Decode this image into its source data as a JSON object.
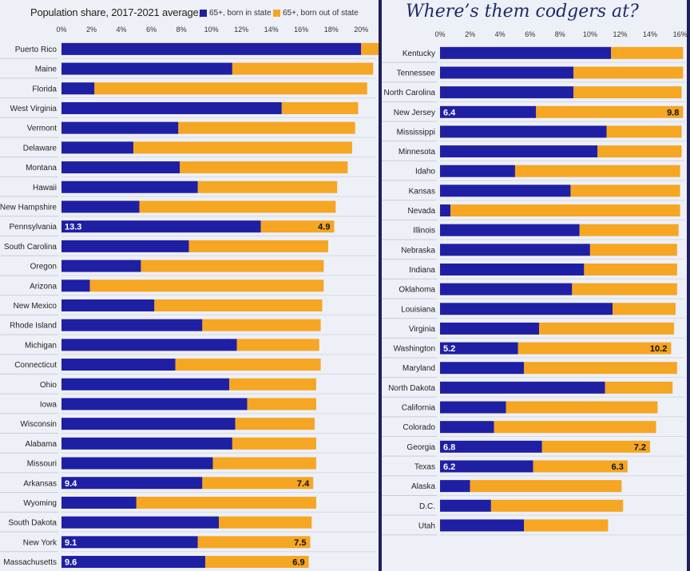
{
  "left_header": {
    "title": "Population share, 2017-2021 average,",
    "legend": [
      {
        "label": "65+, born in state",
        "color": "#1f1fa4"
      },
      {
        "label": "65+, born out of state",
        "color": "#f5a623"
      }
    ]
  },
  "right_header": {
    "title": "Where’s them codgers at?"
  },
  "colors": {
    "in_state": "#1f1fa4",
    "out_of_state": "#f5a623"
  },
  "chart_data": [
    {
      "type": "bar",
      "orientation": "horizontal",
      "stacked": true,
      "x_ticks": [
        "0%",
        "2%",
        "4%",
        "6%",
        "8%",
        "10%",
        "12%",
        "14%",
        "16%",
        "18%",
        "20%"
      ],
      "xlim": [
        0,
        21
      ],
      "categories": [
        "Puerto Rico",
        "Maine",
        "Florida",
        "West Virginia",
        "Vermont",
        "Delaware",
        "Montana",
        "Hawaii",
        "New Hampshire",
        "Pennsylvania",
        "South Carolina",
        "Oregon",
        "Arizona",
        "New Mexico",
        "Rhode Island",
        "Michigan",
        "Connecticut",
        "Ohio",
        "Iowa",
        "Wisconsin",
        "Alabama",
        "Missouri",
        "Arkansas",
        "Wyoming",
        "South Dakota",
        "New York",
        "Massachusetts"
      ],
      "series": [
        {
          "name": "65+, born in state",
          "values": [
            20.0,
            11.4,
            2.2,
            14.7,
            7.8,
            4.8,
            7.9,
            9.1,
            5.2,
            13.3,
            8.5,
            5.3,
            1.9,
            6.2,
            9.4,
            11.7,
            7.6,
            11.2,
            12.4,
            11.6,
            11.4,
            10.1,
            9.4,
            5.0,
            10.5,
            9.1,
            9.6
          ]
        },
        {
          "name": "65+, born out of state",
          "values": [
            1.2,
            9.4,
            18.2,
            5.1,
            11.8,
            14.6,
            11.2,
            9.3,
            13.1,
            4.9,
            9.3,
            12.2,
            15.6,
            11.2,
            7.9,
            5.5,
            9.7,
            5.8,
            4.6,
            5.3,
            5.6,
            6.9,
            7.4,
            12.0,
            6.2,
            7.5,
            6.9
          ]
        }
      ],
      "data_labels": {
        "Pennsylvania": [
          "13.3",
          "4.9"
        ],
        "Arkansas": [
          "9.4",
          "7.4"
        ],
        "New York": [
          "9.1",
          "7.5"
        ],
        "Massachusetts": [
          "9.6",
          "6.9"
        ]
      }
    },
    {
      "type": "bar",
      "orientation": "horizontal",
      "stacked": true,
      "x_ticks": [
        "0%",
        "2%",
        "4%",
        "6%",
        "8%",
        "10%",
        "12%",
        "14%",
        "16%"
      ],
      "xlim": [
        0,
        16.5
      ],
      "categories": [
        "Kentucky",
        "Tennessee",
        "North Carolina",
        "New Jersey",
        "Mississippi",
        "Minnesota",
        "Idaho",
        "Kansas",
        "Nevada",
        "Illinois",
        "Nebraska",
        "Indiana",
        "Oklahoma",
        "Louisiana",
        "Virginia",
        "Washington",
        "Maryland",
        "North Dakota",
        "California",
        "Colorado",
        "Georgia",
        "Texas",
        "Alaska",
        "D.C.",
        "Utah"
      ],
      "series": [
        {
          "name": "65+, born in state",
          "values": [
            11.4,
            8.9,
            8.9,
            6.4,
            11.1,
            10.5,
            5.0,
            8.7,
            0.7,
            9.3,
            10.0,
            9.6,
            8.8,
            11.5,
            6.6,
            5.2,
            5.6,
            11.0,
            4.4,
            3.6,
            6.8,
            6.2,
            2.0,
            3.4,
            5.6
          ]
        },
        {
          "name": "65+, born out of state",
          "values": [
            4.8,
            7.3,
            7.2,
            9.8,
            5.0,
            5.6,
            11.0,
            7.3,
            15.3,
            6.6,
            5.8,
            6.2,
            7.0,
            4.2,
            9.0,
            10.2,
            10.2,
            4.5,
            10.1,
            10.8,
            7.2,
            6.3,
            10.1,
            8.8,
            5.6
          ]
        }
      ],
      "data_labels": {
        "New Jersey": [
          "6.4",
          "9.8"
        ],
        "Washington": [
          "5.2",
          "10.2"
        ],
        "Georgia": [
          "6.8",
          "7.2"
        ],
        "Texas": [
          "6.2",
          "6.3"
        ]
      }
    }
  ]
}
